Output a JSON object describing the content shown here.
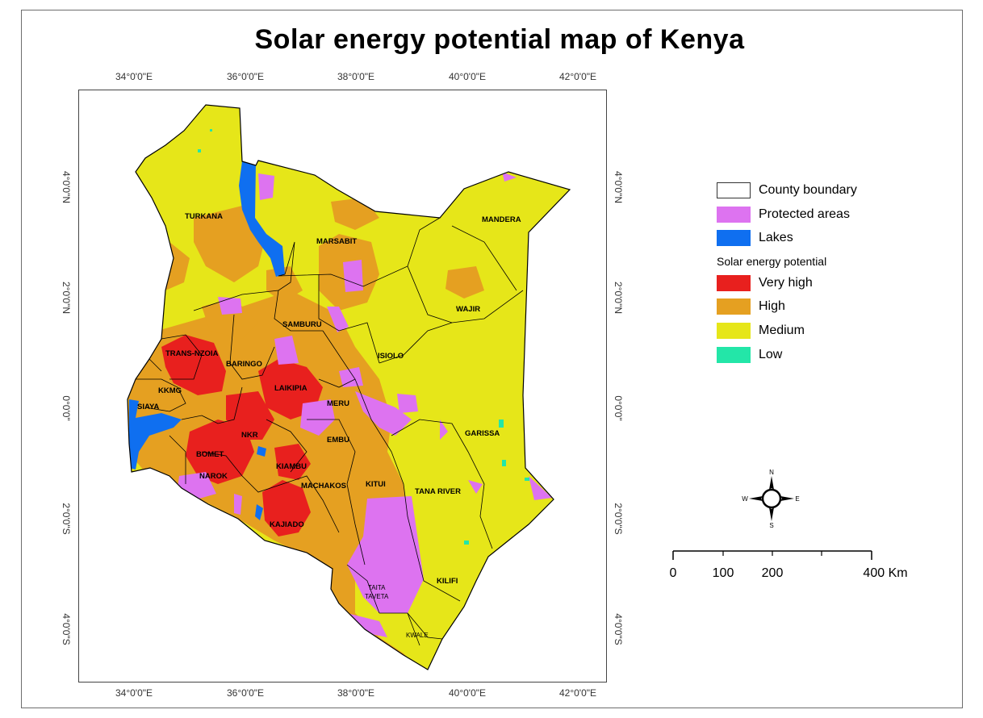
{
  "title": "Solar energy potential map of Kenya",
  "longitude_ticks": [
    "34°0'0\"E",
    "36°0'0\"E",
    "38°0'0\"E",
    "40°0'0\"E",
    "42°0'0\"E"
  ],
  "latitude_ticks": [
    "4°0'0\"N",
    "2°0'0\"N",
    "0°0'0\"",
    "2°0'0\"S",
    "4°0'0\"S"
  ],
  "counties": {
    "turkana": "TURKANA",
    "marsabit": "MARSABIT",
    "mandera": "MANDERA",
    "wajir": "WAJIR",
    "samburu": "SAMBURU",
    "trans_nzoia": "TRANS-NZOIA",
    "baringo": "BARINGO",
    "isiolo": "ISIOLO",
    "kkmg": "KKMG",
    "laikipia": "LAIKIPIA",
    "meru": "MERU",
    "siaya": "SIAYA",
    "garissa": "GARISSA",
    "nkr": "NKR",
    "embu": "EMBU",
    "bomet": "BOMET",
    "kiambu": "KIAMBU",
    "narok": "NAROK",
    "machakos": "MACHAKOS",
    "kitui": "KITUI",
    "tana_river": "TANA RIVER",
    "kajiado": "KAJIADO",
    "kilifi": "KILIFI",
    "taita": "TAITA",
    "taveta": "TAVETA",
    "kwale": "KWALE"
  },
  "legend": {
    "county_boundary": "County boundary",
    "protected_areas": "Protected areas",
    "lakes": "Lakes",
    "heading": "Solar energy potential",
    "very_high": "Very high",
    "high": "High",
    "medium": "Medium",
    "low": "Low"
  },
  "compass": {
    "n": "N",
    "s": "S",
    "e": "E",
    "w": "W"
  },
  "scale": {
    "l0": "0",
    "l100": "100",
    "l200": "200",
    "l400": "400 Km"
  },
  "colors": {
    "very_high": "#e8201e",
    "high": "#e5a021",
    "medium": "#e6e619",
    "low": "#23e6a8",
    "protected": "#dd73f0",
    "lakes": "#0f6ff0",
    "boundary": "#000000"
  }
}
